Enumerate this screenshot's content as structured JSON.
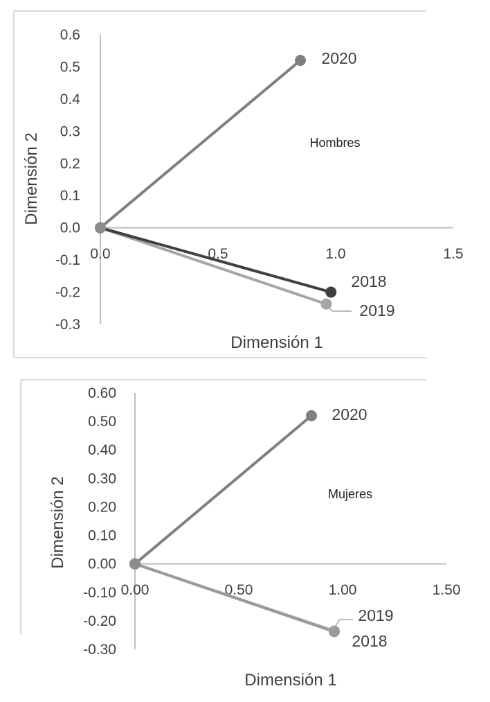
{
  "chart_data": [
    {
      "type": "line",
      "annotation": "Hombres",
      "xlabel": "Dimensión 1",
      "ylabel": "Dimensión 2",
      "xlim": [
        0,
        1.5
      ],
      "ylim": [
        -0.3,
        0.6
      ],
      "x_ticks": [
        0.0,
        0.5,
        1.0,
        1.5
      ],
      "x_tick_labels": [
        "0.0",
        "0.5",
        "1.0",
        "1.5"
      ],
      "y_ticks": [
        0.6,
        0.5,
        0.4,
        0.3,
        0.2,
        0.1,
        0.0,
        -0.1,
        -0.2,
        -0.3
      ],
      "y_tick_labels": [
        "0.6",
        "0.5",
        "0.4",
        "0.3",
        "0.2",
        "0.1",
        "0.0",
        "-0.1",
        "-0.2",
        "-0.3"
      ],
      "series": [
        {
          "name": "2020",
          "color": "#7f7f7f",
          "x": [
            0.0,
            0.85
          ],
          "y": [
            0.0,
            0.52
          ]
        },
        {
          "name": "2018",
          "color": "#404040",
          "x": [
            0.0,
            0.98
          ],
          "y": [
            0.0,
            -0.2
          ]
        },
        {
          "name": "2019",
          "color": "#a6a6a6",
          "x": [
            0.0,
            0.96
          ],
          "y": [
            0.0,
            -0.237
          ]
        }
      ]
    },
    {
      "type": "line",
      "annotation": "Mujeres",
      "xlabel": "Dimensión 1",
      "ylabel": "Dimensión 2",
      "xlim": [
        0,
        1.5
      ],
      "ylim": [
        -0.3,
        0.6
      ],
      "x_ticks": [
        0.0,
        0.5,
        1.0,
        1.5
      ],
      "x_tick_labels": [
        "0.00",
        "0.50",
        "1.00",
        "1.50"
      ],
      "y_ticks": [
        0.6,
        0.5,
        0.4,
        0.3,
        0.2,
        0.1,
        0.0,
        -0.1,
        -0.2,
        -0.3
      ],
      "y_tick_labels": [
        "0.60",
        "0.50",
        "0.40",
        "0.30",
        "0.20",
        "0.10",
        "0.00",
        "-0.10",
        "-0.20",
        "-0.30"
      ],
      "series": [
        {
          "name": "2020",
          "color": "#7f7f7f",
          "x": [
            0.0,
            0.85
          ],
          "y": [
            0.0,
            0.52
          ]
        },
        {
          "name": "2018",
          "color": "#9a9a9a",
          "x": [
            0.0,
            0.96
          ],
          "y": [
            0.0,
            -0.238
          ]
        },
        {
          "name": "2019",
          "color": "#b8b8b8",
          "x": [
            0.0,
            0.96
          ],
          "y": [
            0.0,
            -0.235
          ]
        }
      ]
    }
  ]
}
